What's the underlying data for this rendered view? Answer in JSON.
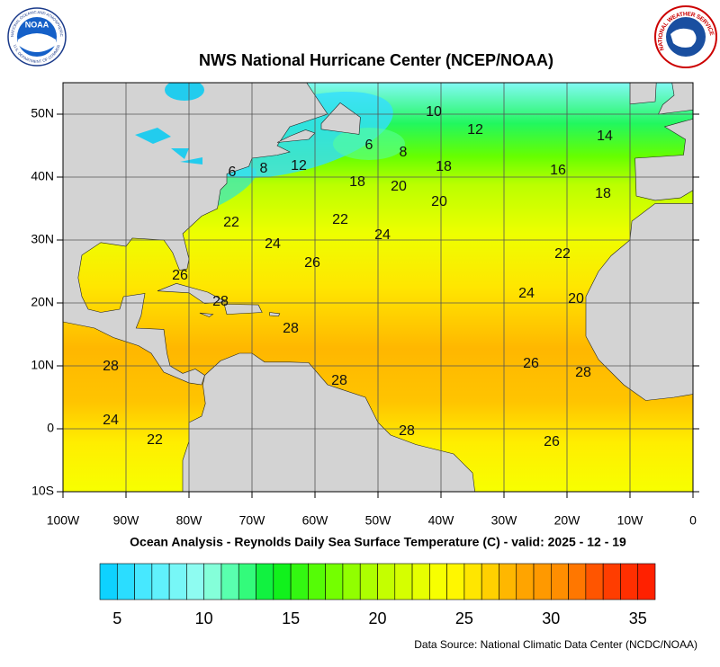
{
  "header": {
    "title": "NWS National Hurricane Center (NCEP/NOAA)",
    "noaa_logo": "NOAA",
    "noaa_ring": "NATIONAL OCEANIC AND ATMOSPHERIC ADMINISTRATION",
    "noaa_ring_bottom": "U.S. DEPARTMENT OF COMMERCE",
    "nws_ring": "NATIONAL WEATHER SERVICE"
  },
  "map": {
    "lon_range": [
      -100,
      0
    ],
    "lat_range": [
      -10,
      55
    ],
    "lon_ticks": [
      {
        "value": -100,
        "label": "100W"
      },
      {
        "value": -90,
        "label": "90W"
      },
      {
        "value": -80,
        "label": "80W"
      },
      {
        "value": -70,
        "label": "70W"
      },
      {
        "value": -60,
        "label": "60W"
      },
      {
        "value": -50,
        "label": "50W"
      },
      {
        "value": -40,
        "label": "40W"
      },
      {
        "value": -30,
        "label": "30W"
      },
      {
        "value": -20,
        "label": "20W"
      },
      {
        "value": -10,
        "label": "10W"
      },
      0
    ],
    "lat_ticks": [
      {
        "value": 50,
        "label": "50N"
      },
      {
        "value": 40,
        "label": "40N"
      },
      {
        "value": 30,
        "label": "30N"
      },
      {
        "value": 20,
        "label": "20N"
      },
      {
        "value": 10,
        "label": "10N"
      },
      0,
      {
        "value": -10,
        "label": "10S"
      }
    ],
    "contour_labels": [
      6,
      8,
      10,
      12,
      14,
      16,
      18,
      18,
      20,
      20,
      12,
      8,
      6,
      18,
      22,
      22,
      24,
      24,
      26,
      22,
      24,
      20,
      26,
      28,
      28,
      28,
      28,
      26,
      28,
      24,
      22,
      28,
      26
    ],
    "caption": "Ocean Analysis - Reynolds Daily Sea Surface Temperature (C) - valid: 2025 - 12 - 19"
  },
  "colorbar": {
    "range": [
      4,
      36
    ],
    "ticks": [
      5,
      10,
      15,
      20,
      25,
      30,
      35
    ]
  },
  "footer": {
    "source": "Data Source: National Climatic Data Center (NCDC/NOAA)"
  }
}
